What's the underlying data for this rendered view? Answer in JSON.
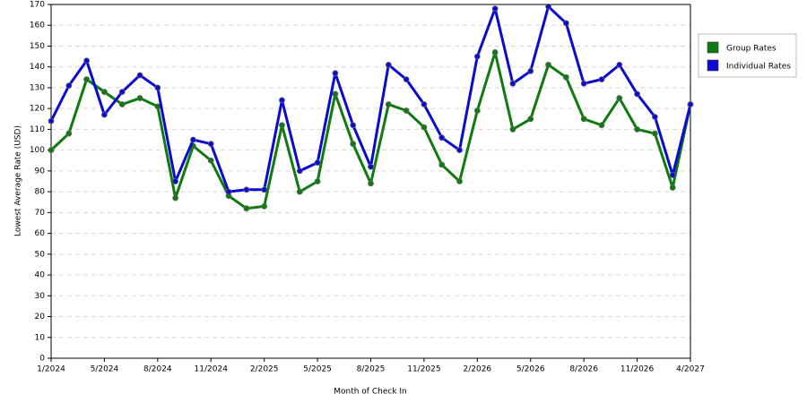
{
  "chart_data": {
    "type": "line",
    "x_label": "Month of Check In",
    "y_label": "Lowest Average Rate (USD)",
    "categories": [
      "1/2024",
      null,
      null,
      "5/2024",
      null,
      null,
      "8/2024",
      null,
      null,
      "11/2024",
      null,
      null,
      "2/2025",
      null,
      null,
      "5/2025",
      null,
      null,
      "8/2025",
      null,
      null,
      "11/2025",
      null,
      null,
      "2/2026",
      null,
      null,
      "5/2026",
      null,
      null,
      "8/2026",
      null,
      null,
      "11/2026",
      null,
      null,
      "4/2027"
    ],
    "series": [
      {
        "name": "Group Rates",
        "color": "#0f7a0f",
        "values": [
          100,
          108,
          134,
          128,
          122,
          125,
          121,
          77,
          102,
          95,
          78,
          72,
          73,
          112,
          80,
          85,
          127,
          103,
          84,
          122,
          119,
          111,
          93,
          85,
          119,
          147,
          110,
          115,
          141,
          135,
          115,
          112,
          125,
          110,
          108,
          82,
          122
        ]
      },
      {
        "name": "Individual Rates",
        "color": "#0a0ad2",
        "values": [
          114,
          131,
          143,
          117,
          128,
          136,
          130,
          85,
          105,
          103,
          80,
          81,
          81,
          124,
          90,
          94,
          137,
          112,
          92,
          141,
          134,
          122,
          106,
          100,
          145,
          168,
          132,
          138,
          169,
          161,
          132,
          134,
          141,
          127,
          116,
          88,
          122
        ]
      }
    ],
    "ylim": [
      0,
      170
    ],
    "yticks": [
      0,
      10,
      20,
      30,
      40,
      50,
      60,
      70,
      80,
      90,
      100,
      110,
      120,
      130,
      140,
      150,
      160,
      170
    ],
    "grid": true,
    "legend": "top-right"
  }
}
